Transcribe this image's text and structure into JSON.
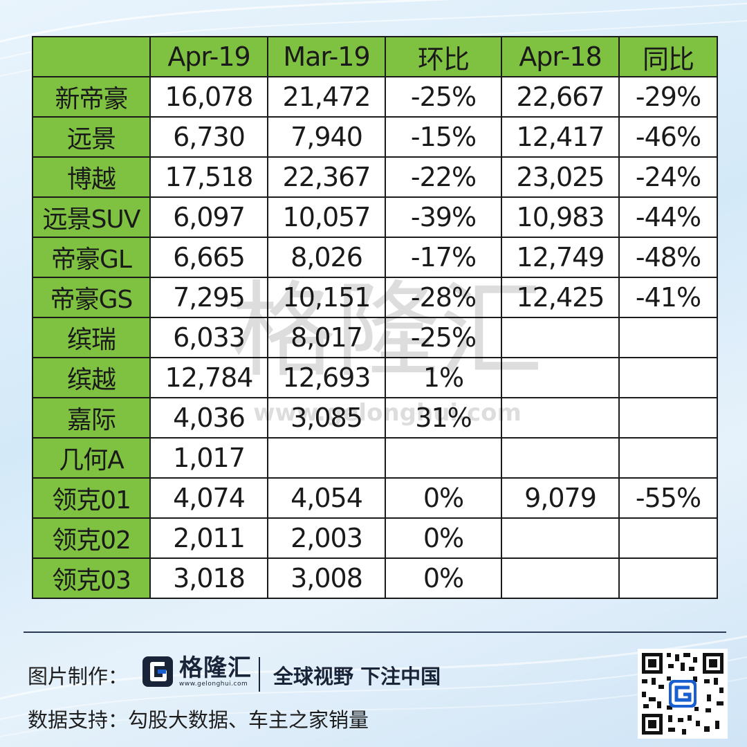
{
  "table": {
    "headers": [
      "",
      "Apr-19",
      "Mar-19",
      "环比",
      "Apr-18",
      "同比"
    ],
    "rows": [
      [
        "新帝豪",
        "16,078",
        "21,472",
        "-25%",
        "22,667",
        "-29%"
      ],
      [
        "远景",
        "6,730",
        "7,940",
        "-15%",
        "12,417",
        "-46%"
      ],
      [
        "博越",
        "17,518",
        "22,367",
        "-22%",
        "23,025",
        "-24%"
      ],
      [
        "远景SUV",
        "6,097",
        "10,057",
        "-39%",
        "10,983",
        "-44%"
      ],
      [
        "帝豪GL",
        "6,665",
        "8,026",
        "-17%",
        "12,749",
        "-48%"
      ],
      [
        "帝豪GS",
        "7,295",
        "10,151",
        "-28%",
        "12,425",
        "-41%"
      ],
      [
        "缤瑞",
        "6,033",
        "8,017",
        "-25%",
        "",
        ""
      ],
      [
        "缤越",
        "12,784",
        "12,693",
        "1%",
        "",
        ""
      ],
      [
        "嘉际",
        "4,036",
        "3,085",
        "31%",
        "",
        ""
      ],
      [
        "几何A",
        "1,017",
        "",
        "",
        "",
        ""
      ],
      [
        "领克01",
        "4,074",
        "4,054",
        "0%",
        "9,079",
        "-55%"
      ],
      [
        "领克02",
        "2,011",
        "2,003",
        "0%",
        "",
        ""
      ],
      [
        "领克03",
        "3,018",
        "3,008",
        "0%",
        "",
        ""
      ]
    ]
  },
  "watermark": {
    "text": "格隆汇",
    "url": "www.gelonghui.com"
  },
  "footer": {
    "credit_label": "图片制作：",
    "logo_text": "格隆汇",
    "logo_url": "www.gelonghui.com",
    "slogan": "全球视野 下注中国",
    "data_label": "数据支持：勾股大数据、车主之家销量"
  },
  "colors": {
    "header_green": "#7fc241",
    "logo_blue": "#1a5fd0",
    "text_dark": "#1a1a1a"
  },
  "icons": [
    "gelonghui-logo-icon",
    "qr-code-icon"
  ]
}
